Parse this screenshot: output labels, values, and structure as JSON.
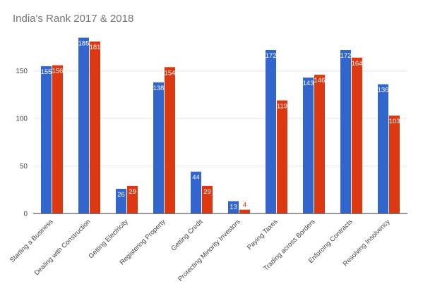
{
  "chart_data": {
    "type": "bar",
    "title": "India's Rank 2017 & 2018",
    "xlabel": "",
    "ylabel": "",
    "ylim": [
      0,
      195
    ],
    "yticks": [
      0,
      50,
      100,
      150
    ],
    "grid": true,
    "legend": "none",
    "categories": [
      "Starting a Business",
      "Dealing with Construction",
      "Getting Electricity",
      "Registering Property",
      "Getting Credit",
      "Protecting Minority Investors",
      "Paying Taxes",
      "Trading across Borders",
      "Enforcing Contracts",
      "Resolving Insolvency"
    ],
    "series": [
      {
        "color": "#3366cc",
        "label_color": "#ffffff",
        "values": [
          155,
          185,
          26,
          138,
          44,
          13,
          172,
          143,
          172,
          136
        ]
      },
      {
        "color": "#dc3912",
        "label_color": "#ffffff",
        "values": [
          156,
          181,
          29,
          154,
          29,
          4,
          119,
          146,
          164,
          103
        ]
      }
    ]
  }
}
